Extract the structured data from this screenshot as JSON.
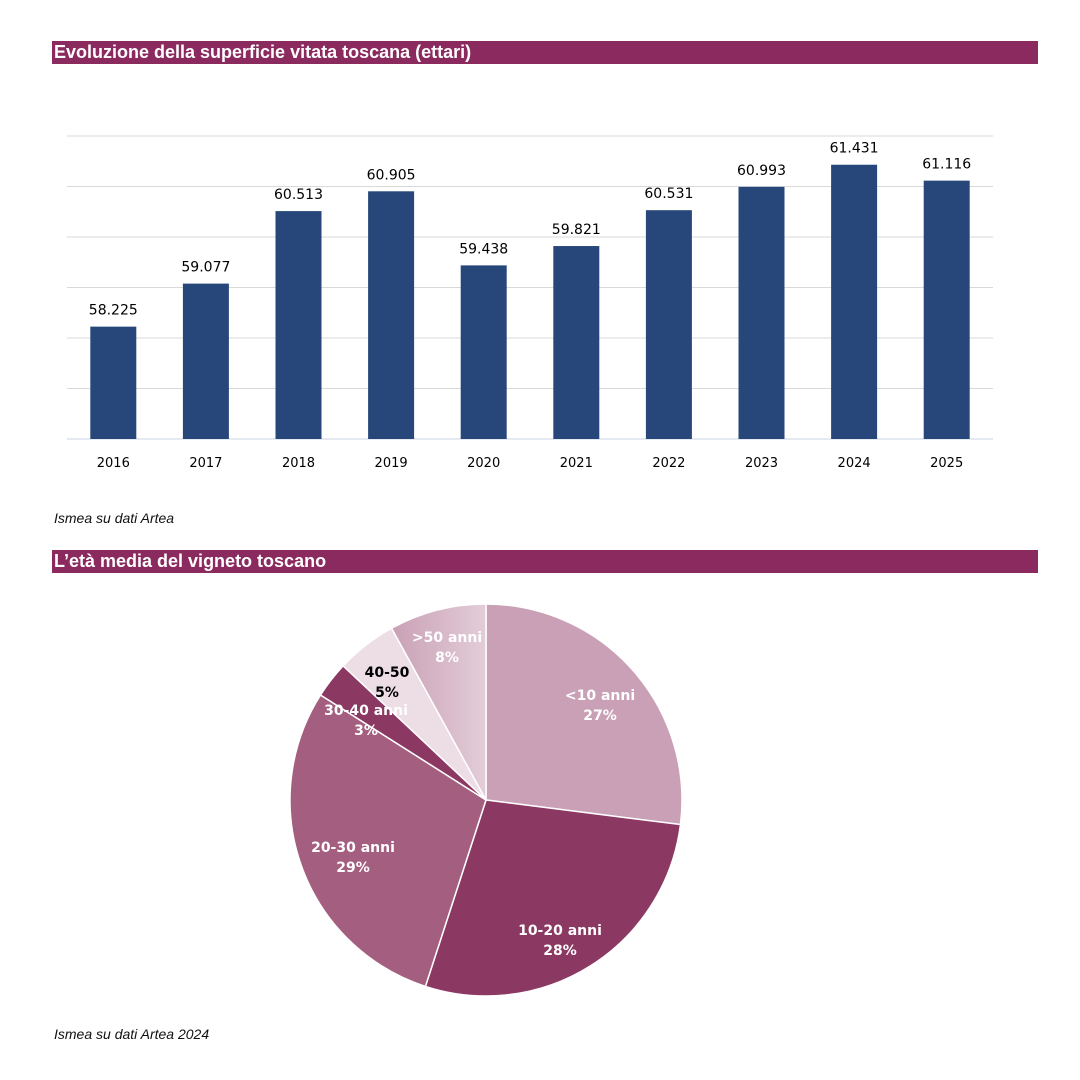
{
  "chart_data": [
    {
      "type": "bar",
      "title": "Evoluzione della superficie vitata toscana (ettari)",
      "categories": [
        "2016",
        "2017",
        "2018",
        "2019",
        "2020",
        "2021",
        "2022",
        "2023",
        "2024",
        "2025"
      ],
      "values": [
        58225,
        59077,
        60513,
        60905,
        59438,
        59821,
        60531,
        60993,
        61431,
        61116
      ],
      "data_labels": [
        "58.225",
        "59.077",
        "60.513",
        "60.905",
        "59.438",
        "59.821",
        "60.531",
        "60.993",
        "61.431",
        "61.116"
      ],
      "ylim": [
        56000,
        62000
      ],
      "ytick_step": 1000,
      "grid": true,
      "ytick_labels_shown": false,
      "color": "#27477a",
      "source": "Ismea su dati Artea"
    },
    {
      "type": "pie",
      "title": "L’età media del vigneto toscano",
      "slices": [
        {
          "label": "<10 anni",
          "value": 27,
          "pct_label": "27%",
          "color": "#c9a0b5",
          "text_color": "#ffffff"
        },
        {
          "label": "10-20 anni",
          "value": 28,
          "pct_label": "28%",
          "color": "#8b3862",
          "text_color": "#ffffff"
        },
        {
          "label": "20-30 anni",
          "value": 29,
          "pct_label": "29%",
          "color": "#a35e80",
          "text_color": "#ffffff"
        },
        {
          "label": "30-40 anni",
          "value": 3,
          "pct_label": "3%",
          "color": "#8b3862",
          "text_color": "#ffffff"
        },
        {
          "label": "40-50",
          "value": 5,
          "pct_label": "5%",
          "color": "#eddde5",
          "text_color": "#000000"
        },
        {
          "label": ">50 anni",
          "value": 8,
          "pct_label": "8%",
          "color": "#c9a0b5",
          "color2": "#e3cdd8",
          "text_color": "#ffffff"
        }
      ],
      "start": "top",
      "direction": "clockwise",
      "source": "Ismea su dati Artea 2024"
    }
  ]
}
